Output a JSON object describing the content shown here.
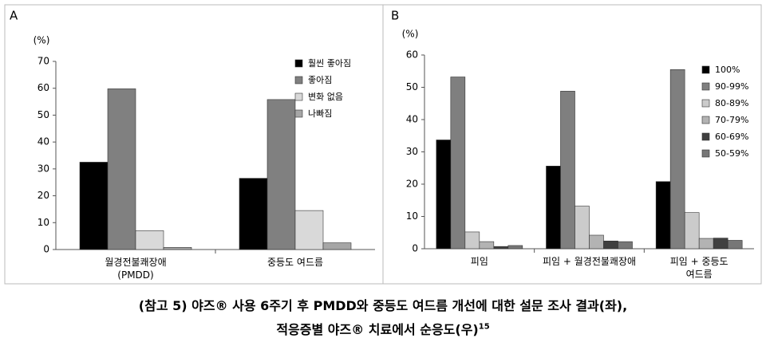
{
  "chart_data": [
    {
      "type": "bar",
      "panel": "A",
      "y_label": "(%)",
      "categories": [
        "월경전불쾌장애\n(PMDD)",
        "중등도 여드름"
      ],
      "series": [
        {
          "name": "훨씬 좋아짐",
          "color": "#000000",
          "values": [
            32.5,
            26.5
          ]
        },
        {
          "name": "좋아짐",
          "color": "#808080",
          "values": [
            59.8,
            55.8
          ]
        },
        {
          "name": "변화 없음",
          "color": "#d9d9d9",
          "values": [
            7.0,
            14.5
          ]
        },
        {
          "name": "나빠짐",
          "color": "#a6a6a6",
          "values": [
            0.8,
            2.5
          ]
        }
      ],
      "ylim": [
        0,
        70
      ],
      "yticks": [
        0,
        10,
        20,
        30,
        40,
        50,
        60,
        70
      ],
      "legend": "upper right"
    },
    {
      "type": "bar",
      "panel": "B",
      "y_label": "(%)",
      "categories": [
        "피임",
        "피임 + 월경전불쾌장애",
        "피임 + 중등도 여드름"
      ],
      "series": [
        {
          "name": "100%",
          "color": "#000000",
          "values": [
            33.7,
            25.6,
            20.8
          ]
        },
        {
          "name": "90-99%",
          "color": "#7f7f7f",
          "values": [
            53.2,
            48.8,
            55.5
          ]
        },
        {
          "name": "80-89%",
          "color": "#cbcbcb",
          "values": [
            5.2,
            13.2,
            11.2
          ]
        },
        {
          "name": "70-79%",
          "color": "#b3b3b3",
          "values": [
            2.2,
            4.2,
            3.2
          ]
        },
        {
          "name": "60-69%",
          "color": "#404040",
          "values": [
            0.7,
            2.4,
            3.3
          ]
        },
        {
          "name": "50-59%",
          "color": "#777777",
          "values": [
            1.0,
            2.2,
            2.6
          ]
        }
      ],
      "ylim": [
        0,
        60
      ],
      "yticks": [
        0,
        10,
        20,
        30,
        40,
        50,
        60
      ],
      "legend": "upper right"
    }
  ],
  "caption": [
    "(참고 5) 야즈® 사용 6주기 후 PMDD와 중등도 여드름 개선에 대한 설문 조사 결과(좌),",
    "적응증별 야즈® 치료에서 순응도(우)"
  ],
  "caption_ref": "15"
}
